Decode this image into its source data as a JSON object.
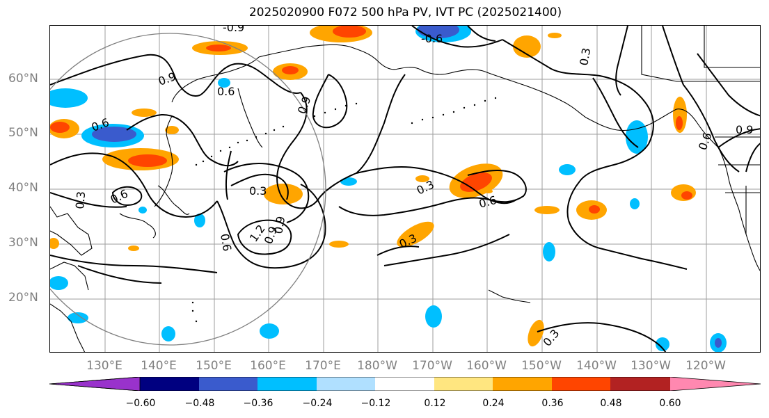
{
  "title": "2025020900 F072 500 hPa PV, IVT PC (2025021400)",
  "map": {
    "lat_labels": [
      "60°N",
      "50°N",
      "40°N",
      "30°N",
      "20°N"
    ],
    "lon_labels": [
      "130°E",
      "140°E",
      "150°E",
      "160°E",
      "170°E",
      "180°W",
      "170°W",
      "160°W",
      "150°W",
      "140°W",
      "130°W",
      "120°W"
    ],
    "contour_labels": [
      "-0.9",
      "-0.6",
      "0.3",
      "0.9",
      "0.6",
      "0.9",
      "0.3",
      "0.6",
      "0.6",
      "0.3",
      "0.6",
      "0.9",
      "1.2",
      "0.9",
      "0.3",
      "0.6",
      "0.3",
      "0.3",
      "0.9",
      "0.6"
    ],
    "colors": {
      "contour": "#000000",
      "coastline": "#000000",
      "gridline": "#9e9e9e",
      "circle": "#808080"
    }
  },
  "colorbar": {
    "ticks": [
      "−0.60",
      "−0.48",
      "−0.36",
      "−0.24",
      "−0.12",
      "0.12",
      "0.24",
      "0.36",
      "0.48",
      "0.60"
    ],
    "colors": [
      "#9932cc",
      "#000080",
      "#3a5bcd",
      "#00bfff",
      "#b0e0ff",
      "#ffffff",
      "#ffe680",
      "#ffa500",
      "#ff4500",
      "#b22222",
      "#ff88b0"
    ]
  }
}
